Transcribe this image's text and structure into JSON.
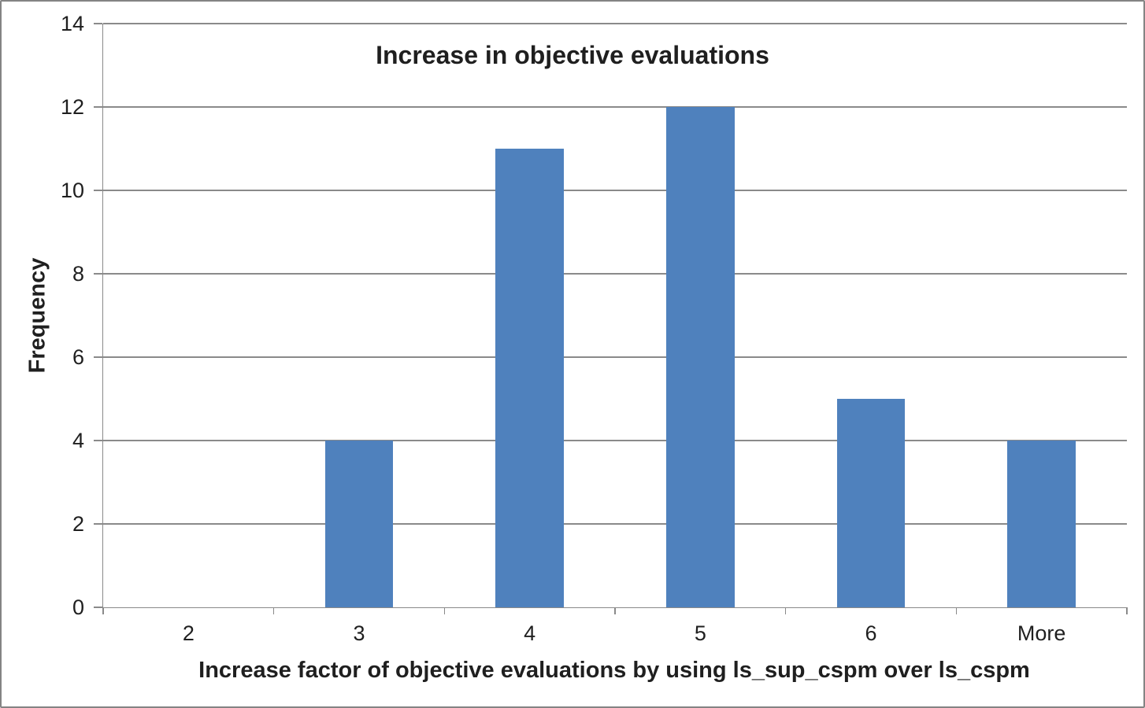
{
  "window": {
    "background": "#ffffff",
    "border_color": "#848484"
  },
  "chart_data": {
    "type": "bar",
    "title": "Increase in objective evaluations",
    "categories": [
      "2",
      "3",
      "4",
      "5",
      "6",
      "More"
    ],
    "values": [
      0,
      4,
      11,
      12,
      5,
      4
    ],
    "xlabel": "Increase factor of objective evaluations by using ls_sup_cspm over ls_cspm",
    "ylabel": "Frequency",
    "ylim": [
      0,
      14
    ],
    "yticks": [
      0,
      2,
      4,
      6,
      8,
      10,
      12,
      14
    ],
    "grid": true,
    "legend_position": "none",
    "bar_width_fraction": 0.4,
    "colors": {
      "bar": "#4f81bd",
      "gridline": "#8a8a8a",
      "axis": "#8a8a8a",
      "text": "#1f1f1f"
    }
  }
}
